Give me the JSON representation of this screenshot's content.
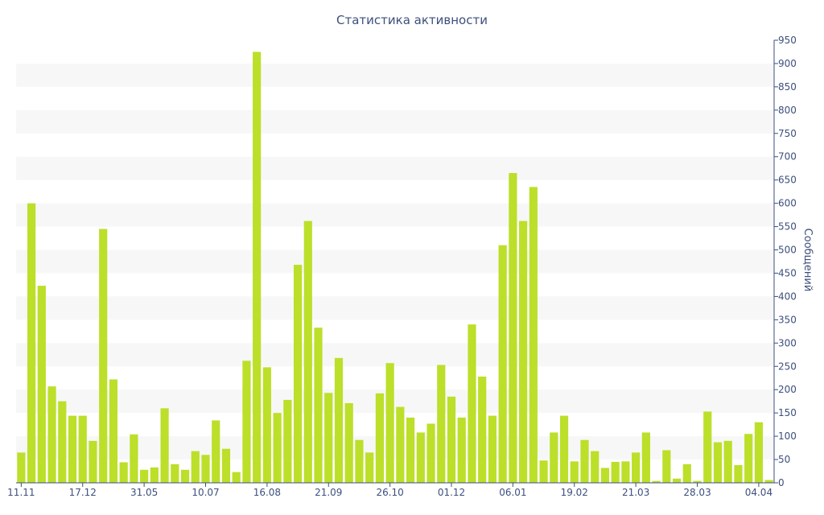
{
  "chart_data": {
    "type": "bar",
    "title": "Статистика активности",
    "xlabel": "",
    "ylabel": "Сообщений",
    "ylim": [
      0,
      950
    ],
    "y_ticks": [
      0,
      50,
      100,
      150,
      200,
      250,
      300,
      350,
      400,
      450,
      500,
      550,
      600,
      650,
      700,
      750,
      800,
      850,
      900,
      950
    ],
    "y_axis_side": "right",
    "grid": "alternating horizontal bands",
    "x_tick_labels": [
      {
        "index": 0,
        "label": "11.11"
      },
      {
        "index": 6,
        "label": "17.12"
      },
      {
        "index": 12,
        "label": "31.05"
      },
      {
        "index": 18,
        "label": "10.07"
      },
      {
        "index": 24,
        "label": "16.08"
      },
      {
        "index": 30,
        "label": "21.09"
      },
      {
        "index": 36,
        "label": "26.10"
      },
      {
        "index": 42,
        "label": "01.12"
      },
      {
        "index": 48,
        "label": "06.01"
      },
      {
        "index": 54,
        "label": "19.02"
      },
      {
        "index": 60,
        "label": "21.03"
      },
      {
        "index": 66,
        "label": "28.03"
      },
      {
        "index": 72,
        "label": "04.04"
      }
    ],
    "values": [
      65,
      600,
      423,
      207,
      175,
      144,
      144,
      90,
      545,
      222,
      44,
      104,
      28,
      33,
      160,
      40,
      28,
      68,
      60,
      134,
      73,
      23,
      262,
      925,
      248,
      150,
      178,
      468,
      562,
      333,
      193,
      268,
      171,
      92,
      65,
      192,
      257,
      163,
      140,
      108,
      127,
      253,
      185,
      140,
      340,
      228,
      144,
      510,
      665,
      562,
      635,
      48,
      108,
      144,
      46,
      92,
      68,
      32,
      45,
      46,
      65,
      108,
      4,
      70,
      9,
      40,
      4,
      153,
      87,
      90,
      38,
      105,
      130,
      6
    ],
    "bar_color": "#bcdf2a",
    "band_color": "#f7f7f7",
    "text_color": "#3d4f7c"
  }
}
